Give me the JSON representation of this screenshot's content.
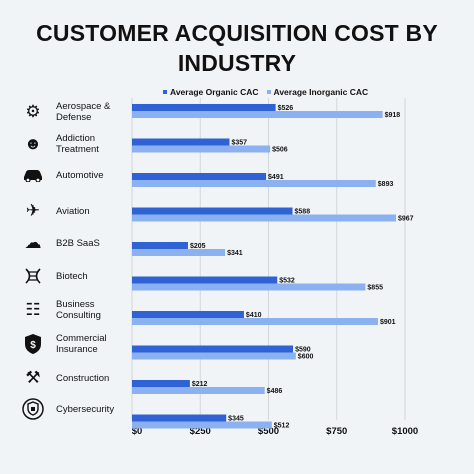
{
  "chart_data": {
    "type": "bar",
    "orientation": "horizontal",
    "title_line1": "CUSTOMER ACQUISITION COST BY",
    "title_line2": "INDUSTRY",
    "categories": [
      "Aerospace & Defense",
      "Addiction Treatment",
      "Automotive",
      "Aviation",
      "B2B SaaS",
      "Biotech",
      "Business Consulting",
      "Commercial Insurance",
      "Construction",
      "Cybersecurity"
    ],
    "series": [
      {
        "name": "Average Organic CAC",
        "color": "#2f62d5",
        "values": [
          526,
          357,
          491,
          588,
          205,
          532,
          410,
          590,
          212,
          345
        ]
      },
      {
        "name": "Average Inorganic CAC",
        "color": "#8bb1f0",
        "values": [
          918,
          506,
          893,
          967,
          341,
          855,
          901,
          600,
          486,
          512
        ]
      }
    ],
    "value_labels": {
      "organic": [
        "$526",
        "$357",
        "$491",
        "$588",
        "$205",
        "$532",
        "$410",
        "$590",
        "$212",
        "$345"
      ],
      "inorganic": [
        "$918",
        "$506",
        "$893",
        "$967",
        "$341",
        "$855",
        "$901",
        "$600",
        "$486",
        "$512"
      ]
    },
    "xticks": [
      0,
      250,
      500,
      750,
      1000
    ],
    "xtick_labels": [
      "$0",
      "$250",
      "$500",
      "$750",
      "$1000"
    ],
    "xlim": [
      0,
      1000
    ],
    "legend_position": "top",
    "grid": "vertical"
  },
  "labels": {
    "cat0_l1": "Aerospace &",
    "cat0_l2": "Defense",
    "cat1_l1": "Addiction",
    "cat1_l2": "Treatment",
    "cat2_l1": "Automotive",
    "cat2_l2": "",
    "cat3_l1": "Aviation",
    "cat3_l2": "",
    "cat4_l1": "B2B SaaS",
    "cat4_l2": "",
    "cat5_l1": "Biotech",
    "cat5_l2": "",
    "cat6_l1": "Business",
    "cat6_l2": "Consulting",
    "cat7_l1": "Commercial",
    "cat7_l2": "Insurance",
    "cat8_l1": "Construction",
    "cat8_l2": "",
    "cat9_l1": "Cybersecurity",
    "cat9_l2": ""
  },
  "icons": [
    "rocket-gear-icon",
    "brain-head-icon",
    "car-icon",
    "airplane-icon",
    "briefcase-cloud-icon",
    "dna-icon",
    "people-meeting-icon",
    "shield-dollar-icon",
    "tools-icon",
    "cyber-shield-icon"
  ],
  "background": "#f1f4f7"
}
